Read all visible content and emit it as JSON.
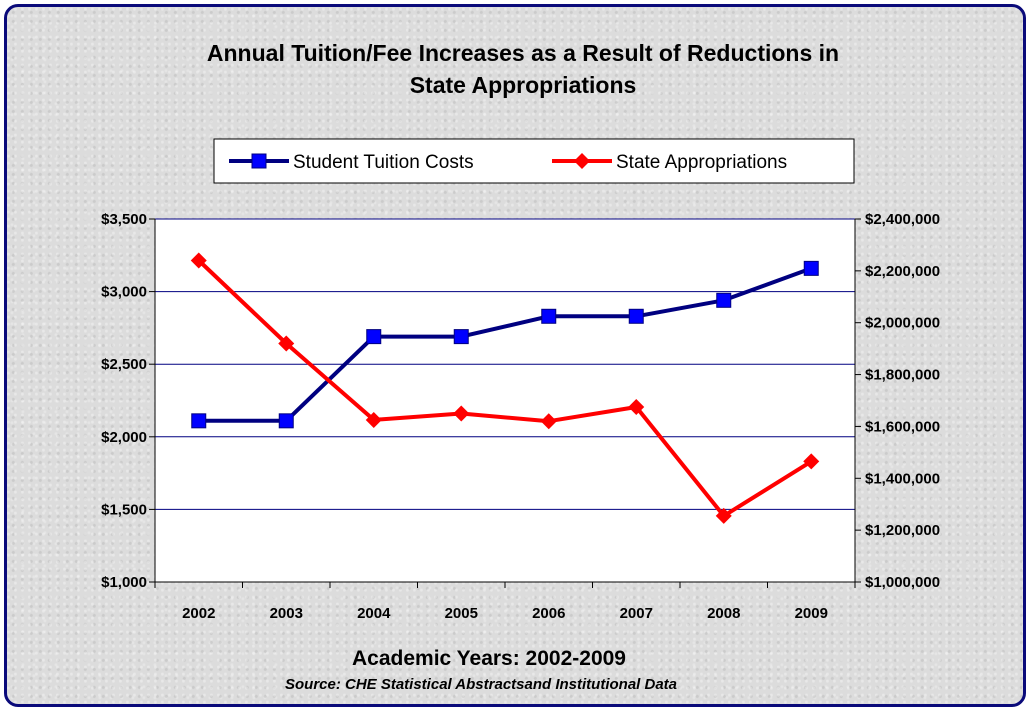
{
  "chart_data": {
    "type": "line",
    "title_lines": [
      "Annual Tuition/Fee Increases as a Result of Reductions in",
      "State Appropriations"
    ],
    "xlabel": "Academic Years: 2002-2009",
    "source": "Source: CHE Statistical Abstractsand Institutional Data",
    "categories": [
      "2002",
      "2003",
      "2004",
      "2005",
      "2006",
      "2007",
      "2008",
      "2009"
    ],
    "series": [
      {
        "name": "Student Tuition Costs",
        "axis": "left",
        "color": "#000080",
        "marker": "square",
        "values": [
          2110,
          2110,
          2690,
          2690,
          2830,
          2830,
          2940,
          3160
        ]
      },
      {
        "name": "State Appropriations",
        "axis": "right",
        "color": "#ff0000",
        "marker": "diamond",
        "values": [
          2240000,
          1920000,
          1625000,
          1650000,
          1620000,
          1675000,
          1255000,
          1465000
        ]
      }
    ],
    "y_left": {
      "ylim": [
        1000,
        3500
      ],
      "ticks": [
        1000,
        1500,
        2000,
        2500,
        3000,
        3500
      ],
      "tick_labels": [
        "$1,000",
        "$1,500",
        "$2,000",
        "$2,500",
        "$3,000",
        "$3,500"
      ]
    },
    "y_right": {
      "ylim": [
        1000000,
        2400000
      ],
      "ticks": [
        1000000,
        1200000,
        1400000,
        1600000,
        1800000,
        2000000,
        2200000,
        2400000
      ],
      "tick_labels": [
        "$1,000,000",
        "$1,200,000",
        "$1,400,000",
        "$1,600,000",
        "$1,800,000",
        "$2,000,000",
        "$2,200,000",
        "$2,400,000"
      ]
    },
    "grid": true,
    "legend_position": "top-center",
    "colors": {
      "plot_background": "#ffffff",
      "gridline": "#000080",
      "frame_border": "#0a0a7a"
    }
  }
}
